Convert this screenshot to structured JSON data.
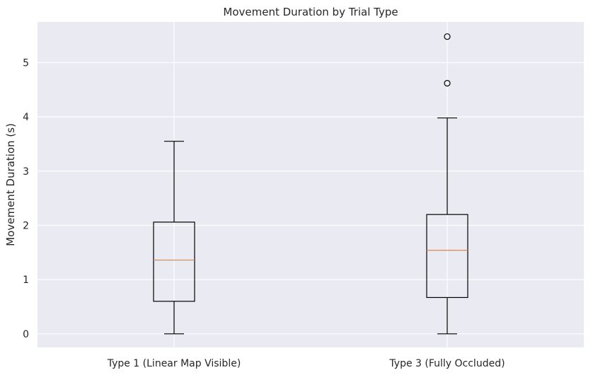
{
  "chart_data": {
    "type": "box",
    "title": "Movement Duration by Trial Type",
    "xlabel": "",
    "ylabel": "Movement Duration (s)",
    "ylim": [
      -0.25,
      5.75
    ],
    "yticks": [
      0,
      1,
      2,
      3,
      4,
      5
    ],
    "grid": true,
    "categories": [
      "Type 1 (Linear Map Visible)",
      "Type 3 (Fully Occluded)"
    ],
    "boxes": [
      {
        "category": "Type 1 (Linear Map Visible)",
        "whisker_low": 0.0,
        "q1": 0.6,
        "median": 1.36,
        "q3": 2.06,
        "whisker_high": 3.55,
        "outliers": []
      },
      {
        "category": "Type 3 (Fully Occluded)",
        "whisker_low": 0.0,
        "q1": 0.67,
        "median": 1.54,
        "q3": 2.2,
        "whisker_high": 3.98,
        "outliers": [
          4.62,
          5.48
        ]
      }
    ],
    "colors": {
      "background": "#eaeaf2",
      "grid": "#ffffff",
      "box": "#000000",
      "median": "#dd8452"
    }
  }
}
